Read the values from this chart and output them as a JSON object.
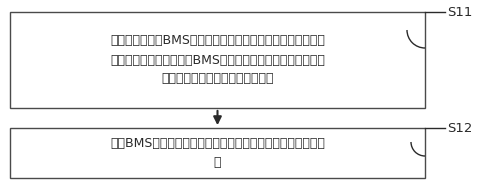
{
  "box1_lines": [
    "在电源管理系统BMS处于休眠状态时，在预设的多个时间段根",
    "据预设时间间隔分别唤醒BMS，后一时间段内的预设时间间隔",
    "大于前一时间段内的预设时间间隔"
  ],
  "box2_lines": [
    "所述BMS被唤醒后对电池进行检测，根据检测结果判断电池状",
    "况"
  ],
  "label1": "S11",
  "label2": "S12",
  "box_edge_color": "#4a4a4a",
  "box_face_color": "#ffffff",
  "text_color": "#2a2a2a",
  "arrow_color": "#2a2a2a",
  "label_color": "#2a2a2a",
  "bg_color": "#ffffff",
  "font_size": 9.0,
  "label_font_size": 9.5
}
